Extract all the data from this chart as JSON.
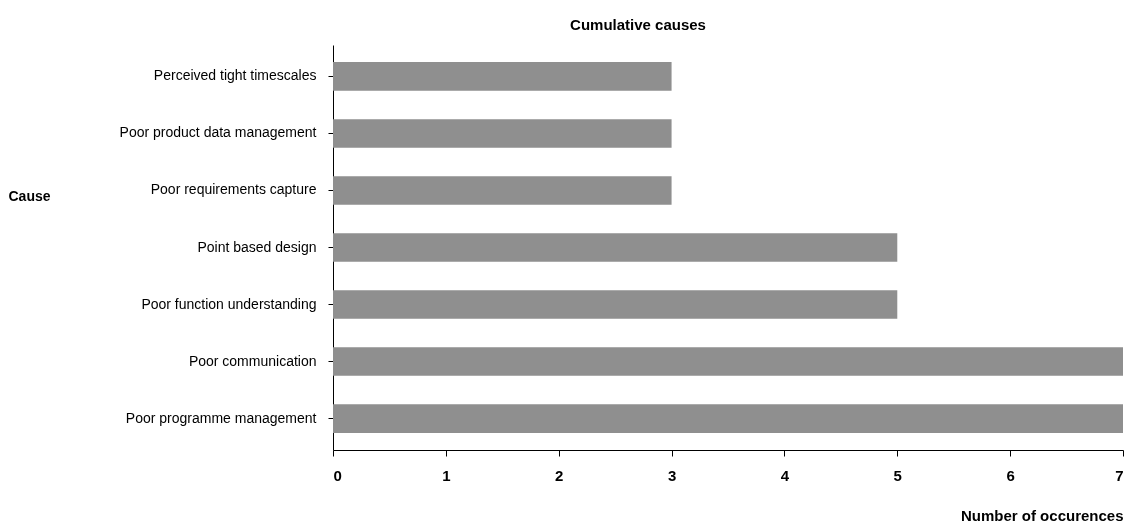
{
  "chart_data": {
    "type": "bar",
    "orientation": "horizontal",
    "title": "Cumulative causes",
    "xlabel": "Number of occurences",
    "ylabel": "Cause",
    "categories": [
      "Perceived tight timescales",
      "Poor product data management",
      "Poor requirements capture",
      "Point based design",
      "Poor function understanding",
      "Poor communication",
      "Poor programme management"
    ],
    "values": [
      3,
      3,
      3,
      5,
      5,
      7,
      7
    ],
    "color": "#8f8f8f",
    "xlim": [
      0,
      7
    ],
    "xticks": [
      0,
      1,
      2,
      3,
      4,
      5,
      6,
      7
    ],
    "grid": false
  }
}
